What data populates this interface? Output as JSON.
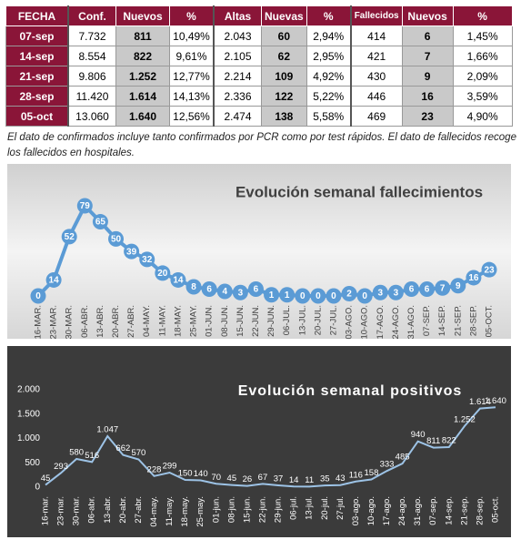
{
  "table": {
    "header": [
      "FECHA",
      "Conf.",
      "Nuevos",
      "%",
      "Altas",
      "Nuevas",
      "%",
      "Fallecidos",
      "Nuevos",
      "%"
    ],
    "rows": [
      [
        "07-sep",
        "7.732",
        "811",
        "10,49%",
        "2.043",
        "60",
        "2,94%",
        "414",
        "6",
        "1,45%"
      ],
      [
        "14-sep",
        "8.554",
        "822",
        "9,61%",
        "2.105",
        "62",
        "2,95%",
        "421",
        "7",
        "1,66%"
      ],
      [
        "21-sep",
        "9.806",
        "1.252",
        "12,77%",
        "2.214",
        "109",
        "4,92%",
        "430",
        "9",
        "2,09%"
      ],
      [
        "28-sep",
        "11.420",
        "1.614",
        "14,13%",
        "2.336",
        "122",
        "5,22%",
        "446",
        "16",
        "3,59%"
      ],
      [
        "05-oct",
        "13.060",
        "1.640",
        "12,56%",
        "2.474",
        "138",
        "5,58%",
        "469",
        "23",
        "4,90%"
      ]
    ]
  },
  "note": "El dato de confirmados incluye tanto confirmados por PCR como por test rápidos. El dato de fallecidos recoge los fallecidos en hospitales.",
  "chart_data": [
    {
      "type": "line",
      "title": "Evolución semanal fallecimientos",
      "color": "#5b9bd5",
      "categories": [
        "16-MAR.",
        "23-MAR.",
        "30-MAR.",
        "06-ABR.",
        "13-ABR.",
        "20-ABR.",
        "27-ABR.",
        "04-MAY.",
        "11-MAY.",
        "18-MAY.",
        "25-MAY.",
        "01-JUN.",
        "08-JUN.",
        "15-JUN.",
        "22-JUN.",
        "29-JUN.",
        "06-JUL.",
        "13-JUL.",
        "20-JUL.",
        "27-JUL.",
        "03-AGO.",
        "10-AGO.",
        "17-AGO.",
        "24-AGO.",
        "31-AGO.",
        "07-SEP.",
        "14-SEP.",
        "21-SEP.",
        "28-SEP.",
        "05-OCT."
      ],
      "values": [
        0,
        14,
        52,
        79,
        65,
        50,
        39,
        32,
        20,
        14,
        8,
        6,
        4,
        3,
        6,
        1,
        1,
        0,
        0,
        0,
        2,
        0,
        3,
        3,
        6,
        6,
        7,
        9,
        16,
        23
      ]
    },
    {
      "type": "line",
      "title": "Evolución semanal positivos",
      "color": "#9dc3e6",
      "categories": [
        "16-mar.",
        "23-mar.",
        "30-mar.",
        "06-abr.",
        "13-abr.",
        "20-abr.",
        "27-abr.",
        "04-may.",
        "11-may.",
        "18-may.",
        "25-may.",
        "01-jun.",
        "08-jun.",
        "15-jun.",
        "22-jun.",
        "29-jun.",
        "06-jul.",
        "13-jul.",
        "20-jul.",
        "27-jul.",
        "03-ago.",
        "10-ago.",
        "17-ago.",
        "24-ago.",
        "31-ago.",
        "07-sep.",
        "14-sep.",
        "21-sep.",
        "28-sep.",
        "05-oct."
      ],
      "values": [
        45,
        293,
        580,
        516,
        1047,
        662,
        570,
        228,
        299,
        150,
        140,
        70,
        45,
        26,
        67,
        37,
        14,
        11,
        35,
        43,
        116,
        158,
        333,
        485,
        940,
        811,
        822,
        1252,
        1614,
        1640
      ],
      "value_labels": [
        "45",
        "293",
        "580",
        "516",
        "1.047",
        "662",
        "570",
        "228",
        "299",
        "150",
        "140",
        "70",
        "45",
        "26",
        "67",
        "37",
        "14",
        "11",
        "35",
        "43",
        "116",
        "158",
        "333",
        "485",
        "940",
        "811",
        "822",
        "1.252",
        "1.614",
        "1.640"
      ],
      "ylim": [
        0,
        2000
      ],
      "yticks": [
        0,
        500,
        {
          "value": 1000,
          "label": "1.000"
        },
        {
          "value": 1500,
          "label": "1.500"
        },
        {
          "value": 2000,
          "label": "2.000"
        }
      ]
    }
  ]
}
